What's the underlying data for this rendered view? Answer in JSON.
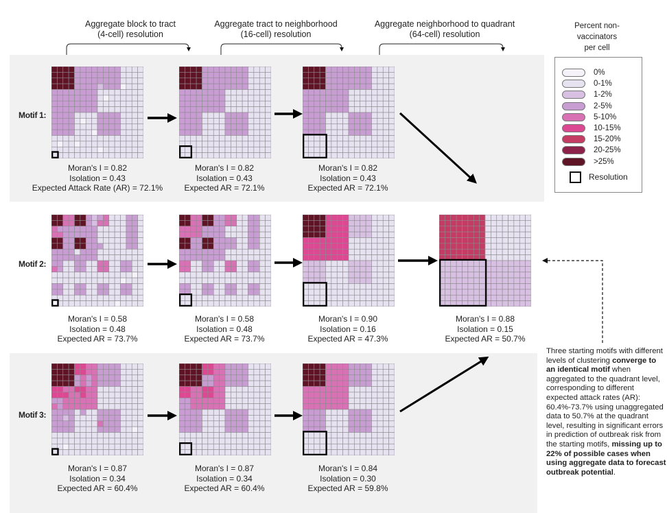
{
  "headers": [
    {
      "line1": "Aggregate block to tract",
      "line2": "(4-cell) resolution"
    },
    {
      "line1": "Aggregate  tract to neighborhood",
      "line2": "(16-cell) resolution"
    },
    {
      "line1": "Aggregate neighborhood to quadrant",
      "line2": "(64-cell) resolution"
    }
  ],
  "legend": {
    "title_lines": [
      "Percent non-",
      "vaccinators",
      "per cell"
    ],
    "levels": [
      {
        "label": "0%",
        "color": "#f5f3f9"
      },
      {
        "label": "0-1%",
        "color": "#e7e2f0"
      },
      {
        "label": "1-2%",
        "color": "#d7c0e1"
      },
      {
        "label": "2-5%",
        "color": "#c89ed2"
      },
      {
        "label": "5-10%",
        "color": "#d872b4"
      },
      {
        "label": "10-15%",
        "color": "#dc4892"
      },
      {
        "label": "15-20%",
        "color": "#c43b63"
      },
      {
        "label": "20-25%",
        "color": "#8c2149"
      },
      {
        "label": ">25%",
        "color": "#5f1426"
      }
    ],
    "resolution_label": "Resolution"
  },
  "motifs": [
    {
      "label": "Motif 1:",
      "panels": [
        {
          "grid": [
            "8888333333331111",
            "8888333333331111",
            "8888333333331111",
            "8888333323330111",
            "3333333311111111",
            "3333333310111111",
            "3333333311111111",
            "3333333311111111",
            "3333111133331111",
            "3333101133331111",
            "3333111133331111",
            "3333111033331111",
            "1111111111111111",
            "1011011111111111",
            "1111111101111111",
            "1111111111111111"
          ],
          "stats": [
            "Moran's I = 0.82",
            "Isolation  = 0.43",
            "Expected Attack Rate (AR) = 72.1%"
          ]
        },
        {
          "grid": [
            "88333311",
            "88333311",
            "33331111",
            "33331111",
            "33113311",
            "33113311",
            "11111111",
            "11111111"
          ],
          "stats": [
            "Moran's I = 0.82",
            "Isolation  = 0.43",
            "Expected AR = 72.1%"
          ]
        },
        {
          "grid": [
            "8331",
            "3311",
            "3131",
            "1111"
          ],
          "stats": [
            "Moran's I = 0.82",
            "Isolation  = 0.43",
            "Expected AR = 72.1%"
          ]
        }
      ]
    },
    {
      "label": "Motif 2:",
      "panels": [
        {
          "grid": [
            "8844883234111331",
            "8844883244111331",
            "4333333311111331",
            "4433333311111331",
            "8833883311111331",
            "8833883331111331",
            "3333133311111111",
            "3333333311111111",
            "3311331144113311",
            "4311331144113311",
            "1111111111111101",
            "1111111111110111",
            "3311331133113311",
            "3311331133113311",
            "1111111111111111",
            "0111111111101111"
          ],
          "stats": [
            "Moran's I = 0.58",
            "Isolation  = 0.48",
            "Expected AR = 73.7%"
          ]
        },
        {
          "grid": [
            "84834131",
            "44331131",
            "83833131",
            "33331111",
            "41314131",
            "11111111",
            "31313131",
            "11111111"
          ],
          "stats": [
            "Moran's I = 0.58",
            "Isolation  = 0.48",
            "Expected AR = 73.7%"
          ]
        },
        {
          "grid": [
            "8521",
            "5511",
            "2121",
            "1111"
          ],
          "stats": [
            "Moran's I = 0.90",
            "Isolation  = 0.16",
            "Expected AR = 47.3%"
          ]
        },
        {
          "grid": [
            "61",
            "22"
          ],
          "stats": [
            "Moran's I = 0.88",
            "Isolation  = 0.15",
            "Expected AR = 50.7%"
          ]
        }
      ]
    },
    {
      "label": "Motif 3:",
      "panels": [
        {
          "grid": [
            "8888554433331111",
            "8888554433331111",
            "8888343433331111",
            "8888343433331111",
            "5544554411111111",
            "5554454411111111",
            "3344444411111111",
            "4344444411111111",
            "3333131133331111",
            "3323111133331111",
            "3333111143331111",
            "3333111133331101",
            "1111111111111111",
            "1111111111111111",
            "1101111111111111",
            "1111111111111111"
          ],
          "stats": [
            "Moran's I = 0.87",
            "Isolation  = 0.34",
            "Expected AR = 60.4%"
          ]
        },
        {
          "grid": [
            "88543311",
            "88343311",
            "54541111",
            "34441111",
            "33113311",
            "33113311",
            "11111111",
            "11111111"
          ],
          "stats": [
            "Moran's I = 0.87",
            "Isolation  = 0.34",
            "Expected AR = 60.4%"
          ]
        },
        {
          "grid": [
            "8431",
            "4411",
            "3131",
            "1111"
          ],
          "stats": [
            "Moran's I = 0.84",
            "Isolation  = 0.30",
            "Expected AR = 59.8%"
          ]
        }
      ]
    }
  ],
  "note": {
    "p1": "Three starting motifs with different levels of clustering ",
    "b1": "converge to an identical motif",
    "p2": " when aggregated to the quadrant level, corresponding to different expected attack rates (AR): 60.4%-73.7% using unaggregated data to 50.7% at the quadrant level, resulting in significant errors in prediction of outbreak risk from the starting motifs, ",
    "b2": "missing up to 22% of possible cases when using aggregate data to forecast outbreak potential",
    "p3": "."
  }
}
